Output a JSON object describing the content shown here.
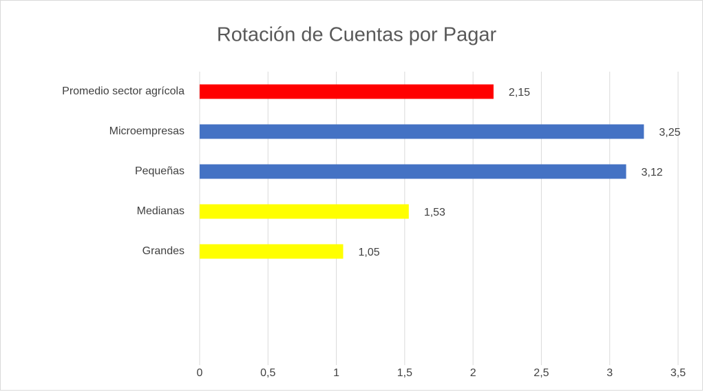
{
  "chart_data": {
    "type": "bar",
    "orientation": "horizontal",
    "title": "Rotación de Cuentas por Pagar",
    "categories": [
      "Promedio sector agrícola",
      "Microempresas",
      "Pequeñas",
      "Medianas",
      "Grandes"
    ],
    "values": [
      2.15,
      3.25,
      3.12,
      1.53,
      1.05
    ],
    "value_labels": [
      "2,15",
      "3,25",
      "3,12",
      "1,53",
      "1,05"
    ],
    "colors": [
      "#ff0000",
      "#4472c4",
      "#4472c4",
      "#ffff00",
      "#ffff00"
    ],
    "xlim": [
      0,
      3.5
    ],
    "xticks": [
      0,
      {
        "value": 0.5,
        "label": "0,5"
      },
      1,
      {
        "value": 1.5,
        "label": "1,5"
      },
      2,
      {
        "value": 2.5,
        "label": "2,5"
      },
      3,
      {
        "value": 3.5,
        "label": "3,5"
      }
    ],
    "grid": true
  }
}
